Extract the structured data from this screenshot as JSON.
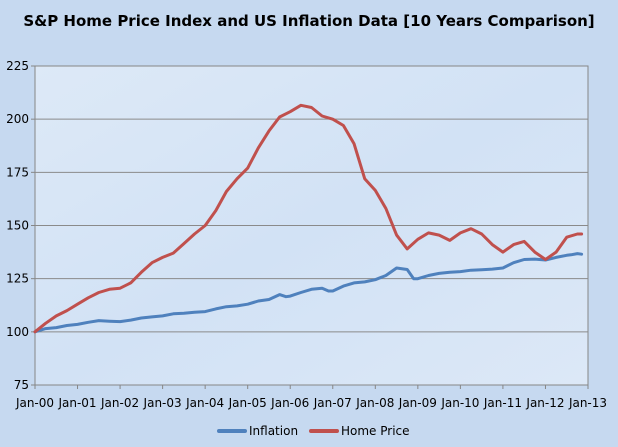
{
  "chart_data": {
    "type": "line",
    "title": "S&P Home Price Index and US Inflation Data [10 Years Comparison]",
    "xlabel": "",
    "ylabel": "",
    "ylim": [
      75,
      225
    ],
    "y_ticks": [
      75,
      100,
      125,
      150,
      175,
      200,
      225
    ],
    "x_range": [
      2000.0,
      2013.0
    ],
    "x_ticks": [
      {
        "x": 2000,
        "label": "Jan-00"
      },
      {
        "x": 2001,
        "label": "Jan-01"
      },
      {
        "x": 2002,
        "label": "Jan-02"
      },
      {
        "x": 2003,
        "label": "Jan-03"
      },
      {
        "x": 2004,
        "label": "Jan-04"
      },
      {
        "x": 2005,
        "label": "Jan-05"
      },
      {
        "x": 2006,
        "label": "Jan-06"
      },
      {
        "x": 2007,
        "label": "Jan-07"
      },
      {
        "x": 2008,
        "label": "Jan-08"
      },
      {
        "x": 2009,
        "label": "Jan-09"
      },
      {
        "x": 2010,
        "label": "Jan-10"
      },
      {
        "x": 2011,
        "label": "Jan-11"
      },
      {
        "x": 2012,
        "label": "Jan-12"
      },
      {
        "x": 2013,
        "label": "Jan-13"
      }
    ],
    "grid": true,
    "legend_position": "bottom",
    "series": [
      {
        "name": "Inflation",
        "color": "#4f81bd",
        "points": [
          [
            2000.0,
            100
          ],
          [
            2000.25,
            101.5
          ],
          [
            2000.5,
            102
          ],
          [
            2000.75,
            103
          ],
          [
            2001.0,
            103.5
          ],
          [
            2001.25,
            104.5
          ],
          [
            2001.5,
            105.3
          ],
          [
            2001.75,
            105
          ],
          [
            2002.0,
            104.8
          ],
          [
            2002.25,
            105.5
          ],
          [
            2002.5,
            106.5
          ],
          [
            2002.75,
            107
          ],
          [
            2003.0,
            107.5
          ],
          [
            2003.25,
            108.5
          ],
          [
            2003.5,
            108.7
          ],
          [
            2003.75,
            109.2
          ],
          [
            2004.0,
            109.5
          ],
          [
            2004.25,
            110.8
          ],
          [
            2004.5,
            111.8
          ],
          [
            2004.75,
            112.2
          ],
          [
            2005.0,
            113
          ],
          [
            2005.25,
            114.5
          ],
          [
            2005.5,
            115.2
          ],
          [
            2005.75,
            117.5
          ],
          [
            2005.9,
            116.5
          ],
          [
            2006.0,
            116.8
          ],
          [
            2006.25,
            118.5
          ],
          [
            2006.5,
            120
          ],
          [
            2006.75,
            120.5
          ],
          [
            2006.9,
            119.2
          ],
          [
            2007.0,
            119.2
          ],
          [
            2007.25,
            121.5
          ],
          [
            2007.5,
            123
          ],
          [
            2007.75,
            123.5
          ],
          [
            2008.0,
            124.5
          ],
          [
            2008.25,
            126.5
          ],
          [
            2008.5,
            130
          ],
          [
            2008.75,
            129.3
          ],
          [
            2008.9,
            125
          ],
          [
            2009.0,
            125
          ],
          [
            2009.25,
            126.5
          ],
          [
            2009.5,
            127.5
          ],
          [
            2009.75,
            128
          ],
          [
            2010.0,
            128.3
          ],
          [
            2010.25,
            129
          ],
          [
            2010.5,
            129.2
          ],
          [
            2010.75,
            129.5
          ],
          [
            2011.0,
            130
          ],
          [
            2011.25,
            132.5
          ],
          [
            2011.5,
            134
          ],
          [
            2011.75,
            134.2
          ],
          [
            2012.0,
            133.8
          ],
          [
            2012.25,
            135
          ],
          [
            2012.5,
            136
          ],
          [
            2012.6,
            136.2
          ],
          [
            2012.75,
            136.8
          ],
          [
            2012.85,
            136.5
          ]
        ]
      },
      {
        "name": "Home Price",
        "color": "#c0504d",
        "points": [
          [
            2000.0,
            100
          ],
          [
            2000.25,
            104
          ],
          [
            2000.5,
            107.5
          ],
          [
            2000.75,
            110
          ],
          [
            2001.0,
            113
          ],
          [
            2001.25,
            116
          ],
          [
            2001.5,
            118.5
          ],
          [
            2001.75,
            120
          ],
          [
            2002.0,
            120.5
          ],
          [
            2002.25,
            123
          ],
          [
            2002.5,
            128
          ],
          [
            2002.75,
            132.5
          ],
          [
            2003.0,
            135
          ],
          [
            2003.25,
            137
          ],
          [
            2003.5,
            141.5
          ],
          [
            2003.75,
            146
          ],
          [
            2004.0,
            150
          ],
          [
            2004.25,
            157
          ],
          [
            2004.5,
            166
          ],
          [
            2004.75,
            172
          ],
          [
            2005.0,
            177
          ],
          [
            2005.25,
            186.5
          ],
          [
            2005.5,
            194.5
          ],
          [
            2005.75,
            201
          ],
          [
            2006.0,
            203.5
          ],
          [
            2006.25,
            206.5
          ],
          [
            2006.5,
            205.5
          ],
          [
            2006.75,
            201.5
          ],
          [
            2007.0,
            200
          ],
          [
            2007.25,
            197
          ],
          [
            2007.5,
            188.5
          ],
          [
            2007.75,
            172
          ],
          [
            2008.0,
            166.5
          ],
          [
            2008.25,
            158
          ],
          [
            2008.5,
            145.5
          ],
          [
            2008.75,
            139
          ],
          [
            2009.0,
            143.5
          ],
          [
            2009.25,
            146.5
          ],
          [
            2009.5,
            145.5
          ],
          [
            2009.75,
            143
          ],
          [
            2010.0,
            146.5
          ],
          [
            2010.25,
            148.5
          ],
          [
            2010.5,
            146
          ],
          [
            2010.75,
            141
          ],
          [
            2011.0,
            137.5
          ],
          [
            2011.25,
            141
          ],
          [
            2011.5,
            142.5
          ],
          [
            2011.75,
            137.5
          ],
          [
            2012.0,
            134
          ],
          [
            2012.25,
            137.5
          ],
          [
            2012.5,
            144.5
          ],
          [
            2012.75,
            146
          ],
          [
            2012.85,
            146
          ]
        ]
      }
    ]
  }
}
